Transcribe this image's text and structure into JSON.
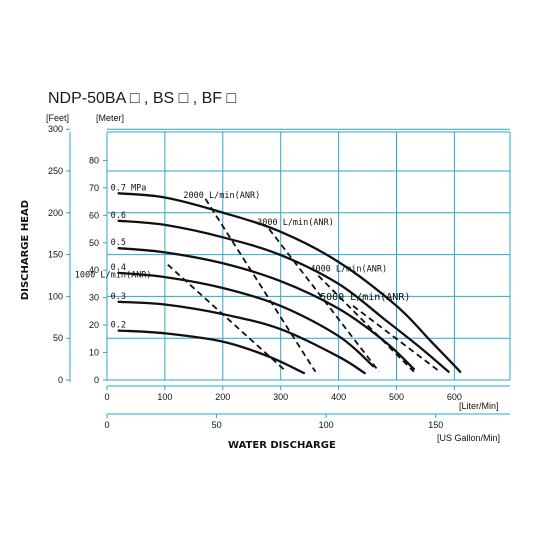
{
  "title": "NDP-50BA □ , BS □ , BF □",
  "y_label": "DISCHARGE HEAD",
  "y_unit_feet": "[Feet]",
  "y_unit_meter": "[Meter]",
  "x_label": "WATER DISCHARGE",
  "x_unit_liter": "[Liter/Min]",
  "x_unit_gallon": "[US Gallon/Min]",
  "colors": {
    "grid": "#2aa8c8",
    "curve": "#111111"
  },
  "chart_data": {
    "type": "line",
    "xlim": [
      0,
      650
    ],
    "ylim_meter": [
      0,
      90
    ],
    "ylim_feet": [
      0,
      300
    ],
    "x_ticks_liter": [
      "0",
      "100",
      "200",
      "300",
      "400",
      "500",
      "600"
    ],
    "x_ticks_gallon": [
      "0",
      "50",
      "100",
      "150"
    ],
    "y_ticks_meter": [
      "0",
      "10",
      "20",
      "30",
      "40",
      "50",
      "60",
      "70",
      "80"
    ],
    "y_ticks_feet": [
      "0",
      "50",
      "100",
      "150",
      "200",
      "250",
      "300"
    ],
    "series": [
      {
        "name": "0.7 MPa",
        "x": [
          20,
          100,
          200,
          300,
          400,
          500,
          560,
          610
        ],
        "y": [
          68,
          66.5,
          61,
          54,
          43,
          27,
          14,
          3
        ]
      },
      {
        "name": "0.6",
        "x": [
          20,
          100,
          200,
          300,
          400,
          480,
          540,
          590
        ],
        "y": [
          58,
          56.5,
          52,
          45.5,
          35,
          22,
          12,
          3
        ]
      },
      {
        "name": "0.5",
        "x": [
          20,
          100,
          200,
          300,
          400,
          480,
          530
        ],
        "y": [
          48,
          46.5,
          42.5,
          36,
          26,
          14,
          4
        ]
      },
      {
        "name": "0.4",
        "x": [
          20,
          100,
          200,
          300,
          400,
          460
        ],
        "y": [
          39,
          37.5,
          33.5,
          27,
          16,
          5
        ]
      },
      {
        "name": "0.3",
        "x": [
          20,
          100,
          200,
          300,
          400,
          445
        ],
        "y": [
          28.5,
          27.5,
          24,
          18.5,
          8.5,
          2.5
        ]
      },
      {
        "name": "0.2",
        "x": [
          20,
          100,
          200,
          280,
          340
        ],
        "y": [
          18,
          17,
          14,
          8.5,
          2.5
        ]
      }
    ],
    "air_flow_lines": [
      {
        "label": "1000 L/min(ANR)",
        "x": [
          105,
          310
        ],
        "y": [
          42,
          3
        ]
      },
      {
        "label": "2000 L/min(ANR)",
        "x": [
          170,
          360
        ],
        "y": [
          66,
          3
        ]
      },
      {
        "label": "3000 L/min(ANR)",
        "x": [
          280,
          470
        ],
        "y": [
          55,
          3
        ]
      },
      {
        "label": "4000 L/min(ANR)",
        "x": [
          365,
          530
        ],
        "y": [
          38,
          3
        ]
      },
      {
        "label": "5000 L/min(ANR)",
        "x": [
          425,
          575
        ],
        "y": [
          27,
          3
        ]
      }
    ]
  }
}
